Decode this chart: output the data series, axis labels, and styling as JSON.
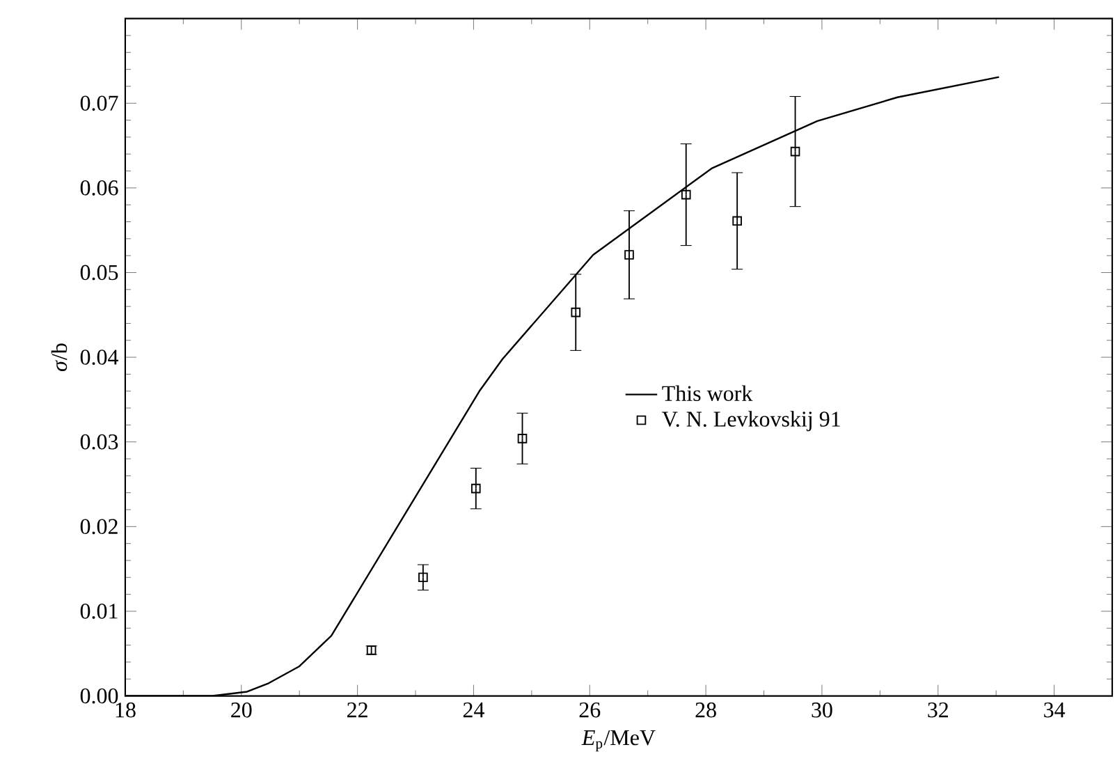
{
  "chart_data": {
    "type": "scatter",
    "xlabel": "*E*$_{p}$/MeV",
    "ylabel": "*σ*/b",
    "xlim": [
      18,
      35
    ],
    "xticks": [
      18,
      20,
      22,
      24,
      26,
      28,
      30,
      32,
      34
    ],
    "ylim": [
      0,
      0.08
    ],
    "yticks": [
      {
        "value": 0,
        "label": "0.00"
      },
      {
        "value": 0.01,
        "label": "0.01"
      },
      {
        "value": 0.02,
        "label": "0.02"
      },
      {
        "value": 0.03,
        "label": "0.03"
      },
      {
        "value": 0.04,
        "label": "0.04"
      },
      {
        "value": 0.05,
        "label": "0.05"
      },
      {
        "value": 0.06,
        "label": "0.06"
      },
      {
        "value": 0.07,
        "label": "0.07"
      },
      {
        "value": 0.08,
        "label": null
      }
    ],
    "legend": "right",
    "grid": false,
    "series": [
      {
        "name": "This work",
        "type": "line",
        "color": "#000000",
        "marker": "none",
        "line_style": "solid",
        "x": [
          18,
          19.5,
          20.1,
          20.47,
          21.0,
          21.55,
          24.1,
          24.5,
          26.06,
          28.1,
          29.92,
          31.3,
          33.05
        ],
        "values": [
          0,
          0,
          0.0005,
          0.0015,
          0.0035,
          0.0071,
          0.036,
          0.0398,
          0.0521,
          0.0623,
          0.0679,
          0.0707,
          0.0731
        ]
      },
      {
        "name": "V. N. Levkovskij 91",
        "color": "#000000",
        "marker": "square",
        "x": [
          22.24,
          23.13,
          24.04,
          24.84,
          25.76,
          26.68,
          27.66,
          28.54,
          29.54
        ],
        "values": [
          0.0054,
          0.014,
          0.0245,
          0.0304,
          0.0453,
          0.0521,
          0.0592,
          0.0561,
          0.0643
        ],
        "errors": [
          0.0005,
          0.0015,
          0.0024,
          0.003,
          0.0045,
          0.0052,
          0.006,
          0.0057,
          0.0065
        ]
      }
    ]
  }
}
